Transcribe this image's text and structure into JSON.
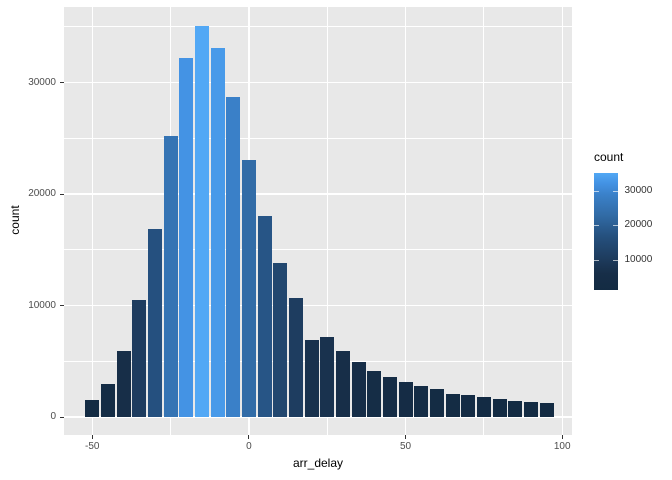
{
  "chart_data": {
    "type": "bar",
    "subtype": "histogram",
    "title": "",
    "xlabel": "arr_delay",
    "ylabel": "count",
    "bin_width": 5,
    "bin_centers": [
      -50,
      -45,
      -40,
      -35,
      -30,
      -25,
      -20,
      -15,
      -10,
      -5,
      0,
      5,
      10,
      15,
      20,
      25,
      30,
      35,
      40,
      45,
      50,
      55,
      60,
      65,
      70,
      75,
      80,
      85,
      90,
      95
    ],
    "counts": [
      1500,
      3000,
      5900,
      10500,
      16900,
      25200,
      32200,
      35100,
      33100,
      28700,
      23100,
      18000,
      13800,
      10700,
      6900,
      7200,
      5900,
      4900,
      4150,
      3550,
      3100,
      2800,
      2500,
      2100,
      2000,
      1750,
      1600,
      1450,
      1350,
      1230
    ],
    "xlim": [
      -59,
      102
    ],
    "ylim": [
      0,
      36800
    ],
    "x_ticks_major": [
      -50,
      0,
      50,
      100
    ],
    "x_ticks_minor": [
      -25,
      25,
      75
    ],
    "y_ticks_major": [
      0,
      10000,
      20000,
      30000
    ],
    "y_ticks_minor": [
      5000,
      15000,
      25000,
      35000
    ],
    "grid": true,
    "legend": {
      "title": "count",
      "position": "right",
      "ticks": [
        30000,
        20000,
        10000
      ],
      "min": 1230,
      "max": 35100
    },
    "colors": {
      "gradient_low": "#132B43",
      "gradient_high": "#56B1F7",
      "panel_background": "#E8E8E8",
      "grid": "#FFFFFF",
      "axis_text": "#4D4D4D",
      "title_text": "#000000",
      "ramp": [
        [
          0.0,
          "#132B43"
        ],
        [
          0.14,
          "#172E48"
        ],
        [
          0.27,
          "#1E3C5E"
        ],
        [
          0.46,
          "#25507E"
        ],
        [
          0.65,
          "#326DA8"
        ],
        [
          0.81,
          "#3A80C8"
        ],
        [
          0.91,
          "#4392E3"
        ],
        [
          1.0,
          "#52A8F5"
        ]
      ]
    }
  }
}
